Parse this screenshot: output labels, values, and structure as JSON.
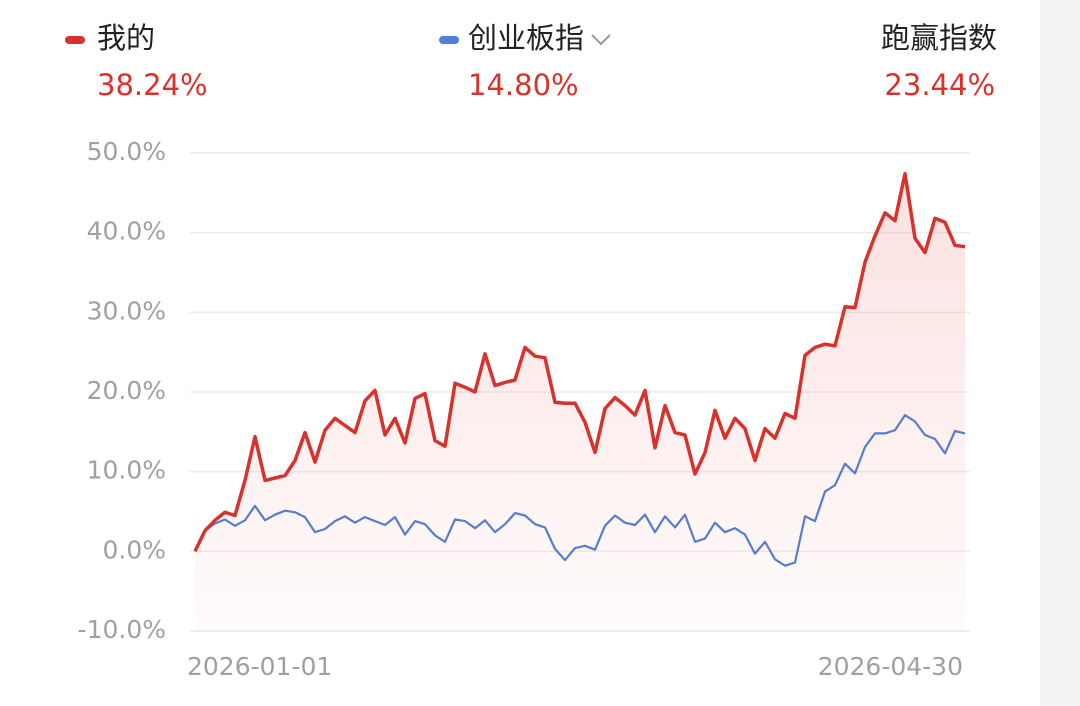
{
  "chart_data": {
    "type": "line",
    "series": [
      {
        "name": "我的",
        "color": "#d8322d",
        "last_label": "38.24%",
        "values": [
          0,
          2.6,
          3.9,
          4.9,
          4.5,
          8.9,
          14.4,
          8.9,
          9.2,
          9.5,
          11.4,
          14.9,
          11.2,
          15.2,
          16.7,
          15.8,
          14.9,
          18.9,
          20.2,
          14.6,
          16.7,
          13.6,
          19.2,
          19.8,
          13.9,
          13.2,
          21.1,
          20.6,
          20.0,
          24.8,
          20.8,
          21.2,
          21.5,
          25.6,
          24.5,
          24.3,
          18.7,
          18.6,
          18.6,
          16.2,
          12.4,
          17.9,
          19.3,
          18.3,
          17.1,
          20.2,
          13.0,
          18.3,
          14.9,
          14.6,
          9.7,
          12.4,
          17.7,
          14.2,
          16.7,
          15.4,
          11.4,
          15.4,
          14.2,
          17.3,
          16.7,
          24.6,
          25.6,
          26.0,
          25.8,
          30.7,
          30.6,
          36.3,
          39.6,
          42.5,
          41.5,
          47.4,
          39.3,
          37.5,
          41.8,
          41.3,
          38.4,
          38.24
        ]
      },
      {
        "name": "创业板指",
        "color": "#4f7fd6",
        "last_label": "14.80%",
        "values": [
          0,
          2.6,
          3.5,
          4.0,
          3.2,
          3.9,
          5.7,
          3.9,
          4.6,
          5.1,
          4.9,
          4.3,
          2.4,
          2.8,
          3.8,
          4.4,
          3.6,
          4.3,
          3.8,
          3.3,
          4.3,
          2.1,
          3.8,
          3.4,
          2.0,
          1.2,
          4.0,
          3.8,
          2.9,
          3.9,
          2.4,
          3.4,
          4.8,
          4.5,
          3.4,
          3.0,
          0.3,
          -1.1,
          0.4,
          0.7,
          0.2,
          3.2,
          4.5,
          3.6,
          3.3,
          4.6,
          2.4,
          4.4,
          3.0,
          4.6,
          1.2,
          1.6,
          3.6,
          2.4,
          2.9,
          2.1,
          -0.3,
          1.2,
          -1.0,
          -1.8,
          -1.4,
          4.4,
          3.8,
          7.5,
          8.3,
          11.0,
          9.8,
          13.1,
          14.8,
          14.8,
          15.2,
          17.1,
          16.3,
          14.6,
          14.1,
          12.3,
          15.1,
          14.8
        ]
      }
    ],
    "excess": {
      "label": "跑赢指数",
      "value_label": "23.44%"
    },
    "categories": [
      "2026-01-01",
      null,
      null,
      null,
      null,
      null,
      null,
      null,
      null,
      null,
      null,
      null,
      null,
      null,
      null,
      null,
      null,
      null,
      null,
      null,
      null,
      null,
      null,
      null,
      null,
      null,
      null,
      null,
      null,
      null,
      null,
      null,
      null,
      null,
      null,
      null,
      null,
      null,
      null,
      null,
      null,
      null,
      null,
      null,
      null,
      null,
      null,
      null,
      null,
      null,
      null,
      null,
      null,
      null,
      null,
      null,
      null,
      null,
      null,
      null,
      null,
      null,
      null,
      null,
      null,
      null,
      null,
      null,
      null,
      null,
      null,
      null,
      null,
      null,
      null,
      null,
      null,
      "2026-04-30"
    ],
    "ylim": [
      -10,
      50
    ],
    "yticks": [
      {
        "value": -10,
        "label": "-10.0%"
      },
      {
        "value": 0,
        "label": "0.0%"
      },
      {
        "value": 10,
        "label": "10.0%"
      },
      {
        "value": 20,
        "label": "20.0%"
      },
      {
        "value": 30,
        "label": "30.0%"
      },
      {
        "value": 40,
        "label": "40.0%"
      },
      {
        "value": 50,
        "label": "50.0%"
      }
    ],
    "grid": true
  }
}
